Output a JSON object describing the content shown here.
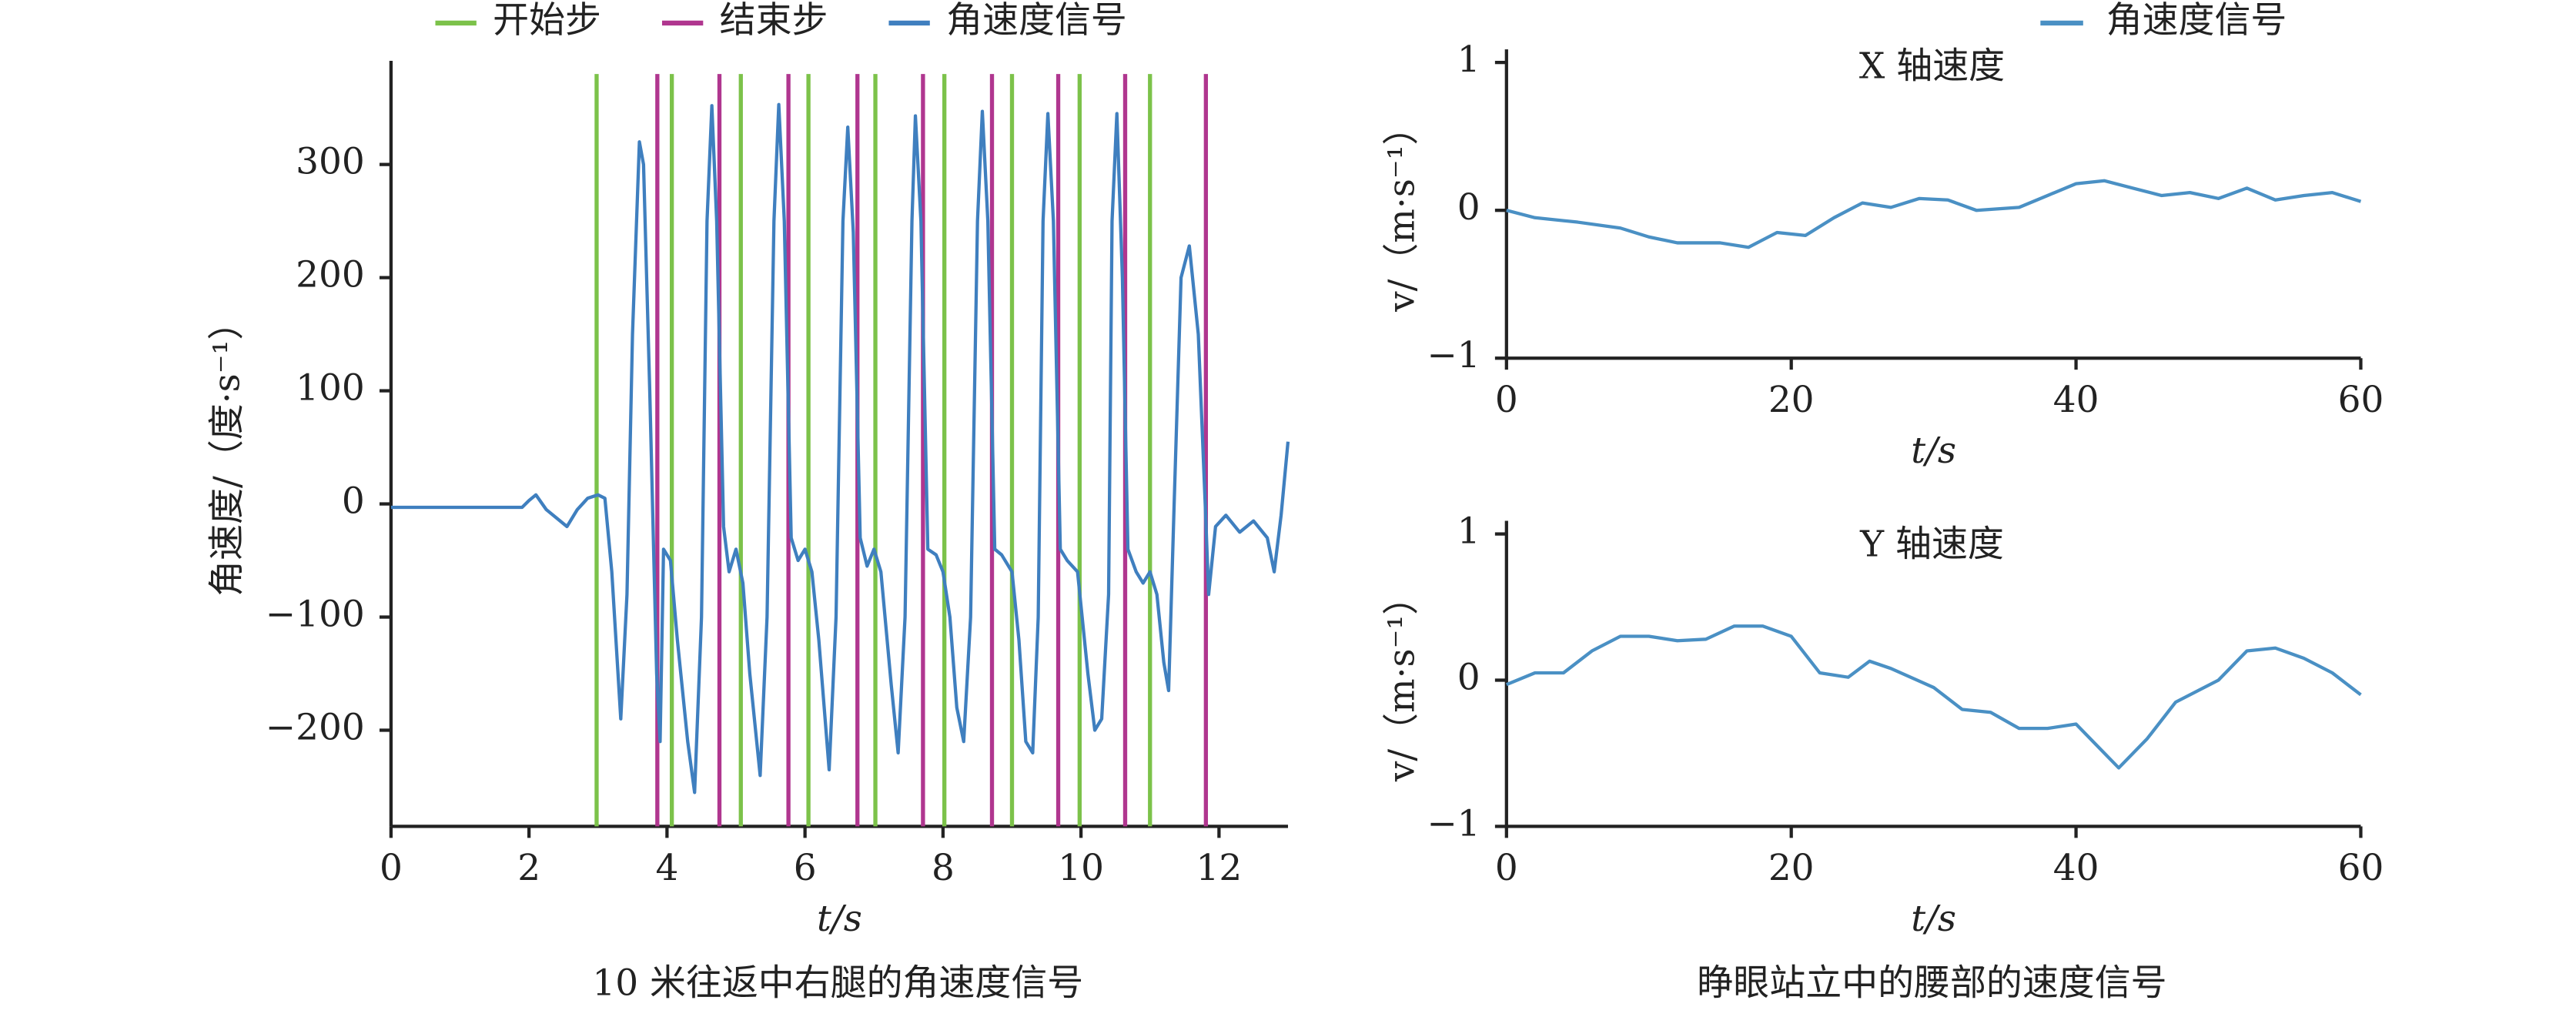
{
  "chart_data": [
    {
      "type": "line",
      "caption": "10 米往返中右腿的角速度信号",
      "xlabel": "t/s",
      "ylabel": "角速度/（度·s⁻¹）",
      "xlim": [
        0,
        13
      ],
      "xticks": [
        0,
        2,
        4,
        6,
        8,
        10,
        12
      ],
      "ylim": [
        -285,
        380
      ],
      "yticks": [
        {
          "value": -200,
          "label": "−200"
        },
        {
          "value": -100,
          "label": "−100"
        },
        0,
        100,
        200,
        300
      ],
      "legend": "top",
      "vlines": [
        {
          "name": "开始步",
          "color": "#7cc24a",
          "x": [
            2.98,
            4.07,
            5.07,
            6.05,
            7.02,
            8.02,
            9.0,
            9.98,
            11.0
          ]
        },
        {
          "name": "结束步",
          "color": "#b0368f",
          "x": [
            3.86,
            4.76,
            5.76,
            6.76,
            7.71,
            8.71,
            9.67,
            10.64,
            11.81
          ]
        }
      ],
      "x": [
        0,
        1.9,
        2.0,
        2.1,
        2.25,
        2.55,
        2.7,
        2.85,
        3.0,
        3.1,
        3.2,
        3.33,
        3.42,
        3.5,
        3.6,
        3.66,
        3.75,
        3.85,
        3.9,
        3.95,
        4.05,
        4.15,
        4.3,
        4.4,
        4.5,
        4.58,
        4.65,
        4.72,
        4.82,
        4.9,
        5.0,
        5.1,
        5.2,
        5.35,
        5.45,
        5.55,
        5.62,
        5.7,
        5.8,
        5.9,
        6.0,
        6.1,
        6.2,
        6.35,
        6.45,
        6.55,
        6.62,
        6.7,
        6.8,
        6.9,
        7.0,
        7.1,
        7.25,
        7.35,
        7.45,
        7.55,
        7.6,
        7.68,
        7.78,
        7.9,
        8.0,
        8.1,
        8.2,
        8.3,
        8.4,
        8.5,
        8.57,
        8.65,
        8.75,
        8.85,
        9.0,
        9.1,
        9.2,
        9.3,
        9.38,
        9.45,
        9.52,
        9.6,
        9.7,
        9.8,
        9.95,
        10.1,
        10.2,
        10.3,
        10.4,
        10.45,
        10.52,
        10.6,
        10.68,
        10.8,
        10.9,
        11.0,
        11.1,
        11.2,
        11.27,
        11.35,
        11.45,
        11.57,
        11.7,
        11.8,
        11.85,
        11.95,
        12.1,
        12.3,
        12.5,
        12.7,
        12.8,
        12.9,
        13.0
      ],
      "series": [
        {
          "name": "角速度信号",
          "color": "#3f7fbf",
          "values": [
            -3,
            -3,
            3,
            8,
            -5,
            -20,
            -5,
            5,
            8,
            5,
            -60,
            -190,
            -80,
            150,
            320,
            300,
            100,
            -150,
            -210,
            -40,
            -50,
            -120,
            -210,
            -255,
            -100,
            250,
            352,
            250,
            -20,
            -60,
            -40,
            -70,
            -150,
            -240,
            -100,
            250,
            353,
            250,
            -30,
            -50,
            -40,
            -60,
            -120,
            -235,
            -100,
            250,
            333,
            240,
            -30,
            -55,
            -40,
            -60,
            -160,
            -220,
            -100,
            250,
            343,
            250,
            -40,
            -45,
            -60,
            -100,
            -180,
            -210,
            -100,
            250,
            347,
            250,
            -40,
            -45,
            -60,
            -120,
            -210,
            -220,
            -100,
            250,
            345,
            250,
            -40,
            -50,
            -60,
            -150,
            -200,
            -190,
            -80,
            250,
            345,
            200,
            -40,
            -60,
            -70,
            -60,
            -80,
            -140,
            -165,
            0,
            200,
            228,
            150,
            0,
            -80,
            -20,
            -10,
            -25,
            -15,
            -30,
            -60,
            -10,
            55
          ]
        }
      ]
    },
    {
      "type": "line",
      "title": "X 轴速度",
      "caption": "睁眼站立中的腰部的速度信号",
      "xlabel": "t/s",
      "ylabel": "v/（m·s⁻¹）",
      "xlim": [
        0,
        60
      ],
      "xticks": [
        0,
        20,
        40,
        60
      ],
      "ylim": [
        -1,
        1
      ],
      "yticks": [
        {
          "value": -1,
          "label": "−1"
        },
        0,
        1
      ],
      "legend": "top-right",
      "x": [
        0,
        2,
        5,
        8,
        10,
        12,
        15,
        17,
        19,
        21,
        23,
        25,
        27,
        29,
        31,
        33,
        36,
        38,
        40,
        42,
        44,
        46,
        48,
        50,
        52,
        54,
        56,
        58,
        60
      ],
      "series": [
        {
          "name": "角速度信号",
          "color": "#4a90c4",
          "values": [
            0,
            -0.05,
            -0.08,
            -0.12,
            -0.18,
            -0.22,
            -0.22,
            -0.25,
            -0.15,
            -0.17,
            -0.05,
            0.05,
            0.02,
            0.08,
            0.07,
            0.0,
            0.02,
            0.1,
            0.18,
            0.2,
            0.15,
            0.1,
            0.12,
            0.08,
            0.15,
            0.07,
            0.1,
            0.12,
            0.06
          ]
        }
      ]
    },
    {
      "type": "line",
      "title": "Y 轴速度",
      "xlabel": "t/s",
      "ylabel": "v/（m·s⁻¹）",
      "xlim": [
        0,
        60
      ],
      "xticks": [
        0,
        20,
        40,
        60
      ],
      "ylim": [
        -1,
        1
      ],
      "yticks": [
        {
          "value": -1,
          "label": "−1"
        },
        0,
        1
      ],
      "x": [
        0,
        2,
        4,
        6,
        8,
        10,
        12,
        14,
        16,
        18,
        20,
        22,
        24,
        25.5,
        27,
        30,
        32,
        34,
        36,
        38,
        40,
        42,
        43,
        45,
        47,
        50,
        52,
        54,
        56,
        58,
        60
      ],
      "series": [
        {
          "color": "#4a90c4",
          "values": [
            -0.03,
            0.05,
            0.05,
            0.2,
            0.3,
            0.3,
            0.27,
            0.28,
            0.37,
            0.37,
            0.3,
            0.05,
            0.02,
            0.13,
            0.08,
            -0.05,
            -0.2,
            -0.22,
            -0.33,
            -0.33,
            -0.3,
            -0.5,
            -0.6,
            -0.4,
            -0.15,
            0.0,
            0.2,
            0.22,
            0.15,
            0.05,
            -0.1
          ]
        }
      ]
    }
  ]
}
